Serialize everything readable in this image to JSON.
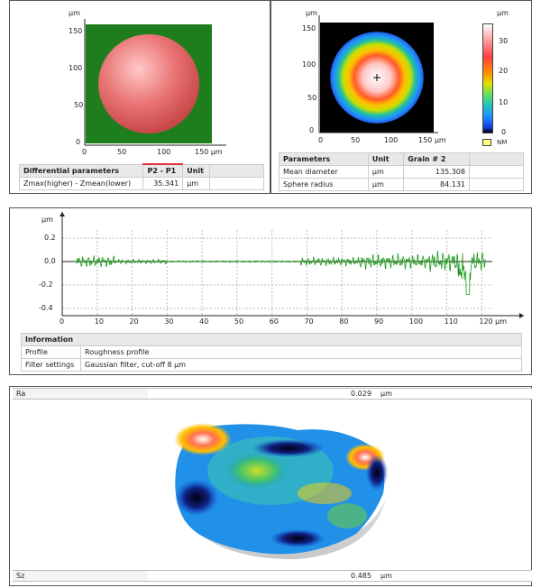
{
  "top_left": {
    "unit": "µm",
    "y_ticks": [
      "150",
      "100",
      "50",
      "0"
    ],
    "x_ticks": [
      "0",
      "50",
      "100",
      "150 µm"
    ],
    "table": {
      "headers": [
        "Differential parameters",
        "P2 - P1",
        "Unit"
      ],
      "row": [
        "Zmax(higher) - Zmean(lower)",
        "35.341",
        "µm"
      ]
    }
  },
  "top_right": {
    "unit": "µm",
    "y_ticks": [
      "150",
      "100",
      "50",
      "0"
    ],
    "x_ticks": [
      "0",
      "50",
      "100",
      "150 µm"
    ],
    "colorbar": {
      "unit": "µm",
      "ticks": [
        "30",
        "20",
        "10",
        "0"
      ],
      "nm_label": "NM"
    },
    "table": {
      "headers": [
        "Parameters",
        "Unit",
        "Grain # 2"
      ],
      "rows": [
        [
          "Mean diameter",
          "µm",
          "135.308"
        ],
        [
          "Sphere radius",
          "µm",
          "84.131"
        ]
      ]
    }
  },
  "profile": {
    "unit": "µm",
    "y_ticks": [
      "0.2",
      "0.0",
      "-0.2",
      "-0.4"
    ],
    "x_ticks": [
      "0",
      "10",
      "20",
      "30",
      "40",
      "50",
      "60",
      "70",
      "80",
      "90",
      "100",
      "110",
      "120 µm"
    ],
    "info": {
      "title": "Information",
      "rows": [
        [
          "Profile",
          "Roughness profile"
        ],
        [
          "Filter settings",
          "Gaussian filter, cut-off 8 µm"
        ]
      ]
    }
  },
  "bottom": {
    "ra": {
      "label": "Ra",
      "value": "0.029",
      "unit": "µm"
    },
    "sz": {
      "label": "Sz",
      "value": "0.485",
      "unit": "µm"
    }
  }
}
